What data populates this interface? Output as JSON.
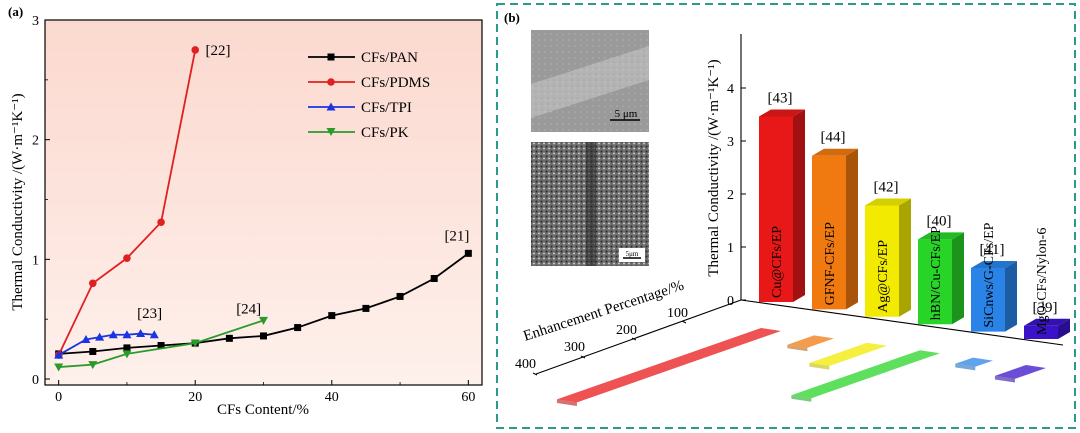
{
  "chart_data": [
    {
      "type": "line",
      "panel_label": "(a)",
      "xlabel": "CFs Content/%",
      "ylabel": "Thermal Conductivity /(W·m⁻¹K⁻¹)",
      "xlim": [
        -2,
        62
      ],
      "ylim": [
        -0.05,
        3
      ],
      "xticks": [
        0,
        20,
        40,
        60
      ],
      "yticks": [
        0,
        1,
        2,
        3
      ],
      "grid": false,
      "legend_position": "top-right",
      "series": [
        {
          "name": "CFs/PAN",
          "color": "#000000",
          "marker": "square",
          "x": [
            0,
            5,
            10,
            15,
            20,
            25,
            30,
            35,
            40,
            45,
            50,
            55,
            60
          ],
          "y": [
            0.21,
            0.23,
            0.26,
            0.28,
            0.3,
            0.34,
            0.36,
            0.43,
            0.53,
            0.59,
            0.69,
            0.84,
            1.05
          ]
        },
        {
          "name": "CFs/PDMS",
          "color": "#e02020",
          "marker": "circle",
          "x": [
            0,
            5,
            10,
            15,
            20
          ],
          "y": [
            0.2,
            0.8,
            1.01,
            1.31,
            2.75
          ]
        },
        {
          "name": "CFs/TPI",
          "color": "#1a35e0",
          "marker": "triangle-up",
          "x": [
            0,
            4,
            6,
            8,
            10,
            12,
            14
          ],
          "y": [
            0.2,
            0.33,
            0.35,
            0.37,
            0.37,
            0.38,
            0.37
          ]
        },
        {
          "name": "CFs/PK",
          "color": "#2a9a2a",
          "marker": "triangle-down",
          "x": [
            0,
            5,
            10,
            20,
            30
          ],
          "y": [
            0.1,
            0.12,
            0.21,
            0.3,
            0.49
          ]
        }
      ],
      "annotations": [
        {
          "text": "[22]",
          "x": 21.5,
          "y": 2.75
        },
        {
          "text": "[21]",
          "x": 56.5,
          "y": 1.2
        },
        {
          "text": "[23]",
          "x": 11.5,
          "y": 0.55
        },
        {
          "text": "[24]",
          "x": 26,
          "y": 0.59
        }
      ]
    },
    {
      "type": "bar",
      "panel_label": "(b)",
      "style": "3d-bars",
      "ylabel": "Thermal Conductivity /(W·m⁻¹K⁻¹)",
      "zlabel": "Enhancement Percentage/%",
      "ylim": [
        0,
        4
      ],
      "yticks": [
        0,
        1,
        2,
        3,
        4
      ],
      "enhancement_ticks": [
        100,
        200,
        300,
        400
      ],
      "categories": [
        "Cu@CFs/EP",
        "GFNF-CFs/EP",
        "Ag@CFs/EP",
        "hBN/Cu-CFs/EP",
        "SiCnws/G-CFs/EP",
        "MgO-CFs/Nylon-6"
      ],
      "values": [
        3.5,
        2.9,
        2.1,
        1.6,
        1.2,
        0.25
      ],
      "enhancement": [
        460,
        60,
        130,
        290,
        40,
        70
      ],
      "refs": [
        "[43]",
        "[44]",
        "[42]",
        "[40]",
        "[41]",
        "[39]"
      ],
      "colors": [
        "#e81818",
        "#f07a10",
        "#f2ea00",
        "#28d428",
        "#2a84e8",
        "#3a12c8"
      ],
      "inset_scale_bars": [
        "5 μm",
        "5μm"
      ]
    }
  ]
}
